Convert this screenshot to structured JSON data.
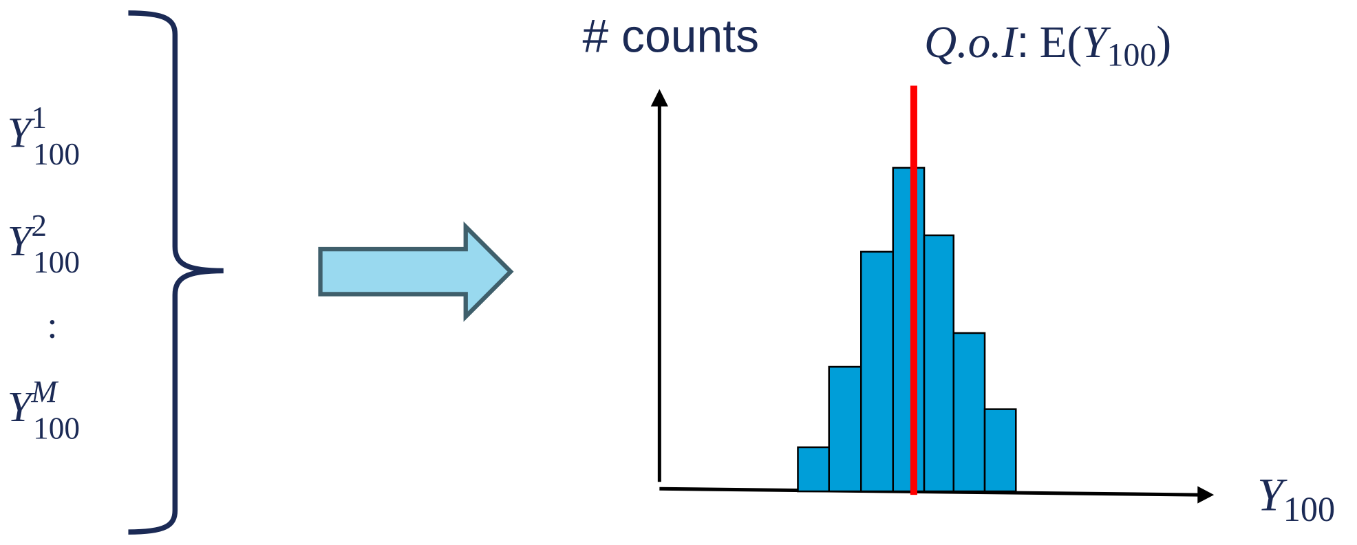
{
  "samples": [
    {
      "base": "Y",
      "sup": "1",
      "sub": "100"
    },
    {
      "base": "Y",
      "sup": "2",
      "sub": "100"
    },
    {
      "ellipsis": ":"
    },
    {
      "base": "Y",
      "sup": "M",
      "sub": "100"
    }
  ],
  "histogram": {
    "y_axis_label": "# counts",
    "quantity": {
      "prefix": "Q.o.I",
      "colon": ":",
      "func": "E(",
      "base": "Y",
      "sub": "100",
      "close": ")"
    },
    "x_axis_label": {
      "base": "Y",
      "sub": "100"
    }
  }
}
